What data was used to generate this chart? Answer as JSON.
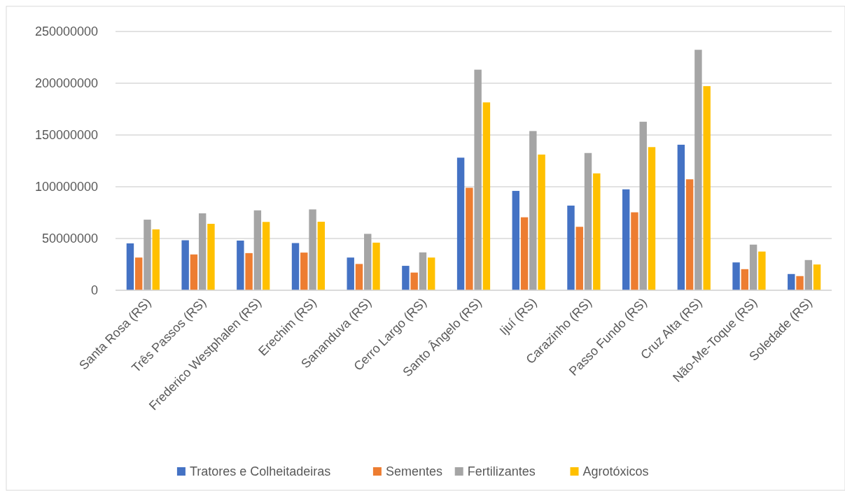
{
  "chart_data": {
    "type": "bar",
    "categories": [
      "Santa Rosa (RS)",
      "Três Passos (RS)",
      "Frederico Westphalen (RS)",
      "Erechim (RS)",
      "Sananduva (RS)",
      "Cerro Largo (RS)",
      "Santo Ângelo (RS)",
      "Ijuí (RS)",
      "Carazinho (RS)",
      "Passo Fundo (RS)",
      "Cruz Alta (RS)",
      "Não-Me-Toque (RS)",
      "Soledade (RS)"
    ],
    "series": [
      {
        "name": "Tratores e Colheitadeiras",
        "color": "#4472c4",
        "values": [
          45300000,
          48300000,
          48000000,
          45600000,
          31600000,
          23600000,
          128100000,
          96000000,
          81800000,
          97500000,
          140600000,
          26900000,
          15700000
        ]
      },
      {
        "name": "Sementes",
        "color": "#ed7d31",
        "values": [
          31600000,
          34600000,
          35900000,
          36400000,
          25400000,
          17100000,
          99000000,
          70500000,
          61300000,
          75300000,
          107200000,
          20400000,
          13700000
        ]
      },
      {
        "name": "Fertilizantes",
        "color": "#a5a5a5",
        "values": [
          68200000,
          74300000,
          77200000,
          78100000,
          54500000,
          36600000,
          213100000,
          153800000,
          132600000,
          162800000,
          232300000,
          44100000,
          29200000
        ]
      },
      {
        "name": "Agrotóxicos",
        "color": "#ffc000",
        "values": [
          58800000,
          64200000,
          66000000,
          66200000,
          46000000,
          31600000,
          181500000,
          131100000,
          112900000,
          138300000,
          197200000,
          37400000,
          24900000
        ]
      }
    ],
    "ylim": [
      0,
      250000000
    ],
    "yticks": [
      0,
      50000000,
      100000000,
      150000000,
      200000000,
      250000000
    ],
    "grid": "y",
    "legend": "bottom"
  }
}
